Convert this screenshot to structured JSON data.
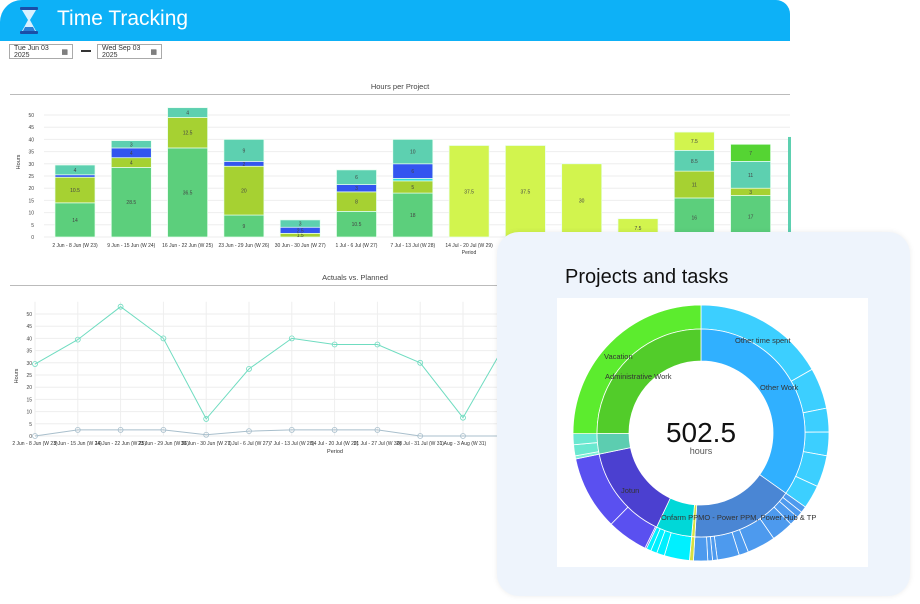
{
  "header": {
    "title": "Time Tracking",
    "icon": "hourglass-icon"
  },
  "dates": {
    "from": "Tue Jun 03 2025",
    "to": "Wed Sep 03 2025"
  },
  "colors": {
    "header": "#0db1f7",
    "green": "#5ccf7c",
    "olive": "#a6d132",
    "blue": "#3355f0",
    "teal": "#5dd0b0",
    "cyan": "#2ee0d8",
    "lime": "#d2f44e",
    "bright": "#55d433"
  },
  "chart_data": [
    {
      "type": "bar",
      "title": "Hours per Project",
      "xlabel": "Period",
      "ylabel": "Hours",
      "ylim": [
        0,
        55
      ],
      "yticks": [
        0,
        5,
        10,
        15,
        20,
        25,
        30,
        35,
        40,
        45,
        50
      ],
      "categories": [
        "2 Jun - 8 Jun (W 23)",
        "9 Jun - 15 Jun (W 24)",
        "16 Jun - 22 Jun (W 25)",
        "23 Jun - 29 Jun (W 26)",
        "30 Jun - 30 Jun (W 27)",
        "1 Jul - 6 Jul (W 27)",
        "7 Jul - 13 Jul (W 28)",
        "14 Jul - 20 Jul (W 29)",
        "",
        "",
        "",
        "",
        ""
      ],
      "series": [
        {
          "name": "green",
          "color": "#5ccf7c",
          "values": [
            14,
            28.5,
            36.5,
            9,
            0,
            10.5,
            18,
            0,
            0,
            0,
            0,
            16,
            17
          ]
        },
        {
          "name": "olive",
          "color": "#a6d132",
          "values": [
            10.5,
            4,
            12.5,
            20,
            1.5,
            8,
            5,
            0,
            0,
            0,
            0,
            11,
            3
          ]
        },
        {
          "name": "cyan",
          "color": "#2ee0d8",
          "values": [
            0,
            0,
            0,
            0,
            0,
            0,
            1,
            0,
            0,
            0,
            0,
            0,
            0
          ]
        },
        {
          "name": "blue",
          "color": "#3355f0",
          "values": [
            1,
            4,
            0,
            2,
            2.5,
            3,
            6,
            0,
            0,
            0,
            0,
            0,
            0
          ]
        },
        {
          "name": "teal",
          "color": "#5dd0b0",
          "values": [
            4,
            3,
            4,
            9,
            3,
            6,
            10,
            0,
            0,
            0,
            0,
            8.5,
            11
          ]
        },
        {
          "name": "lime",
          "color": "#d2f44e",
          "values": [
            0,
            0,
            0,
            0,
            0,
            0,
            0,
            37.5,
            37.5,
            30,
            7.5,
            7.5,
            0
          ]
        },
        {
          "name": "bright-green",
          "color": "#55d433",
          "values": [
            0,
            0,
            0,
            0,
            0,
            0,
            0,
            0,
            0,
            0,
            0,
            0,
            7
          ]
        }
      ]
    },
    {
      "type": "line",
      "title": "Actuals vs. Planned",
      "xlabel": "Period",
      "ylabel": "Hours",
      "ylim": [
        0,
        55
      ],
      "yticks": [
        0,
        5,
        10,
        15,
        20,
        25,
        30,
        35,
        40,
        45,
        50
      ],
      "x": [
        "2 Jun - 8 Jun (W 23)",
        "9 Jun - 15 Jun (W 24)",
        "16 Jun - 22 Jun (W 25)",
        "23 Jun - 29 Jun (W 26)",
        "30 Jun - 30 Jun (W 27)",
        "1 Jul - 6 Jul (W 27)",
        "7 Jul - 13 Jul (W 28)",
        "14 Jul - 20 Jul (W 29)",
        "21 Jul - 27 Jul (W 30)",
        "28 Jul - 31 Jul (W 31)",
        "1 Aug - 3 Aug (W 31)",
        "4 Aug -"
      ],
      "series": [
        {
          "name": "Actuals",
          "color": "#6fdcc0",
          "values": [
            29.5,
            39.5,
            53,
            40,
            7,
            27.5,
            40,
            37.5,
            37.5,
            30,
            7.5,
            38
          ]
        },
        {
          "name": "Planned",
          "color": "#a9bfcc",
          "values": [
            0,
            2.5,
            2.5,
            2.5,
            0.5,
            2,
            2.5,
            2.5,
            2.5,
            0,
            0,
            0
          ]
        }
      ]
    },
    {
      "type": "pie",
      "title": "Projects and tasks",
      "total": "502.5",
      "unit": "hours",
      "inner": [
        {
          "label": "Other Work",
          "value": 175,
          "color": "#30b0ff"
        },
        {
          "label": "Onfarm PPMO - Power PPM, Power Hub & TP",
          "value": 81,
          "color": "#4a86d4"
        },
        {
          "label": "",
          "value": 2.5,
          "color": "#d8e040"
        },
        {
          "label": "",
          "value": 28,
          "color": "#00d8d8"
        },
        {
          "label": "Jotun",
          "value": 74,
          "color": "#4b40d0"
        },
        {
          "label": "",
          "value": 16,
          "color": "#5ccdb0"
        },
        {
          "label": "Administrative Work",
          "value": 126,
          "color": "#52cc2a"
        }
      ],
      "outer": [
        {
          "label": "Other time spent",
          "value": 84,
          "color": "#3ccfff"
        },
        {
          "label": "",
          "value": 26,
          "color": "#3ccfff"
        },
        {
          "label": "",
          "value": 15,
          "color": "#3ccfff"
        },
        {
          "label": "",
          "value": 15,
          "color": "#3ccfff"
        },
        {
          "label": "",
          "value": 20,
          "color": "#3ccfff"
        },
        {
          "label": "",
          "value": 15,
          "color": "#3ccfff"
        },
        {
          "label": "",
          "value": 4,
          "color": "#4d9aee"
        },
        {
          "label": "",
          "value": 4,
          "color": "#4d9aee"
        },
        {
          "label": "",
          "value": 6,
          "color": "#4d9aee"
        },
        {
          "label": "",
          "value": 14,
          "color": "#4d9aee"
        },
        {
          "label": "",
          "value": 18,
          "color": "#4d9aee"
        },
        {
          "label": "",
          "value": 6,
          "color": "#4d9aee"
        },
        {
          "label": "",
          "value": 14,
          "color": "#4d9aee"
        },
        {
          "label": "",
          "value": 3,
          "color": "#4d9aee"
        },
        {
          "label": "",
          "value": 3,
          "color": "#4d9aee"
        },
        {
          "label": "",
          "value": 9,
          "color": "#4d9aee"
        },
        {
          "label": "",
          "value": 2.5,
          "color": "#d8e040"
        },
        {
          "label": "",
          "value": 16,
          "color": "#00f0ff"
        },
        {
          "label": "",
          "value": 5,
          "color": "#00f0ff"
        },
        {
          "label": "",
          "value": 4,
          "color": "#00f0ff"
        },
        {
          "label": "",
          "value": 3,
          "color": "#00f0ff"
        },
        {
          "label": "",
          "value": 1,
          "color": "#6a60f0"
        },
        {
          "label": "",
          "value": 26,
          "color": "#5a50f0"
        },
        {
          "label": "",
          "value": 47,
          "color": "#5a50f0"
        },
        {
          "label": "",
          "value": 2,
          "color": "#7ff0d8"
        },
        {
          "label": "",
          "value": 7,
          "color": "#6ae8d0"
        },
        {
          "label": "",
          "value": 7,
          "color": "#6ae8d0"
        },
        {
          "label": "Vacation",
          "value": 126,
          "color": "#5cec2e"
        }
      ]
    }
  ]
}
